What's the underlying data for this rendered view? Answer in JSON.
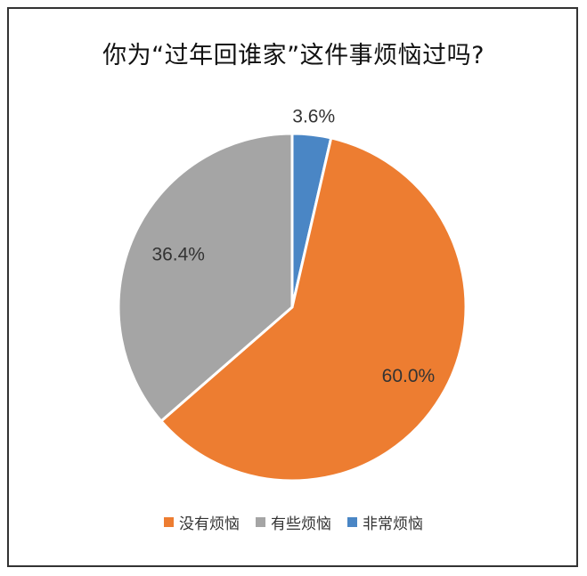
{
  "chart_data": {
    "type": "pie",
    "title": "你为“过年回谁家”这件事烦恼过吗?",
    "slices": [
      {
        "label": "非常烦恼",
        "value": 3.6,
        "value_label": "3.6%",
        "color": "#4a86c5"
      },
      {
        "label": "没有烦恼",
        "value": 60.0,
        "value_label": "60.0%",
        "color": "#ed7d31"
      },
      {
        "label": "有些烦恼",
        "value": 36.4,
        "value_label": "36.4%",
        "color": "#a5a5a5"
      }
    ],
    "legend": [
      "没有烦恼",
      "有些烦恼",
      "非常烦恼"
    ],
    "legend_position": "bottom",
    "start_angle": "12 o'clock",
    "direction": "clockwise"
  }
}
